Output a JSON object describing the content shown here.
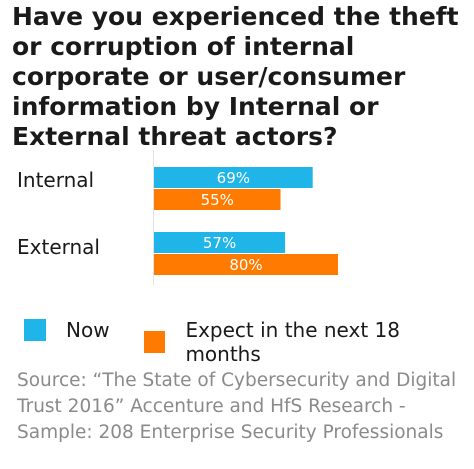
{
  "title": "Have you experienced the theft or corruption of internal corporate or user/consumer information by Internal or External threat actors?",
  "chart_data": {
    "type": "bar",
    "orientation": "horizontal",
    "categories": [
      "Internal",
      "External"
    ],
    "series": [
      {
        "name": "Now",
        "values": [
          69,
          57
        ],
        "color": "#1fb5e9"
      },
      {
        "name": "Expect in the next 18 months",
        "values": [
          55,
          80
        ],
        "color": "#ff7a00"
      }
    ],
    "data_labels": [
      [
        "69%",
        "55%"
      ],
      [
        "57%",
        "80%"
      ]
    ],
    "xlim": [
      0,
      100
    ],
    "grid": false,
    "legend_position": "bottom"
  },
  "legend": {
    "now_label": "Now",
    "expect_label": "Expect in the next 18 months",
    "now_color": "#1fb5e9",
    "expect_color": "#ff7a00"
  },
  "source": "Source: “The State of Cybersecurity and Digital Trust 2016” Accenture and HfS Research - Sample: 208 Enterprise Security Professionals"
}
